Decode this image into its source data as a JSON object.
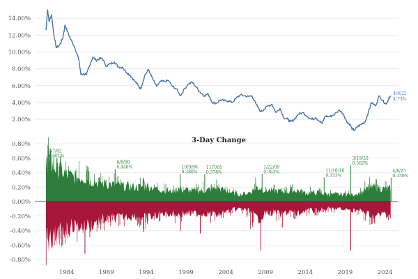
{
  "colors": {
    "line": "#4a74a8",
    "up": "#2e7d3a",
    "down": "#a8173a",
    "grid": "#dddddd",
    "annotation_top": "#2e7d3a",
    "last_label": "#4a74a8"
  },
  "chart_data": [
    {
      "type": "line",
      "title": "",
      "ylabel": "",
      "xlabel": "",
      "ylim": [
        0.6,
        15.5
      ],
      "xlim": [
        1980.5,
        2026.2
      ],
      "yticks": [
        "2.00%",
        "4.00%",
        "6.00%",
        "8.00%",
        "10.00%",
        "12.00%",
        "14.00%"
      ],
      "series": [
        {
          "x": [
            1981.9,
            1982.1,
            1982.3,
            1982.6,
            1982.9,
            1983.2,
            1983.6,
            1984.0,
            1984.3,
            1984.6,
            1985.0,
            1985.5,
            1986.0,
            1986.3,
            1986.6,
            1987.0,
            1987.3,
            1987.8,
            1988.2,
            1988.6,
            1989.0,
            1989.5,
            1990.0,
            1990.5,
            1991.0,
            1991.5,
            1992.0,
            1992.5,
            1993.0,
            1993.5,
            1993.8,
            1994.3,
            1994.8,
            1995.3,
            1995.8,
            1996.3,
            1996.8,
            1997.3,
            1997.8,
            1998.3,
            1998.8,
            1999.3,
            1999.8,
            2000.3,
            2000.8,
            2001.3,
            2001.8,
            2002.3,
            2002.8,
            2003.3,
            2003.8,
            2004.3,
            2004.8,
            2005.3,
            2005.8,
            2006.3,
            2006.8,
            2007.3,
            2007.8,
            2008.3,
            2008.9,
            2009.3,
            2009.8,
            2010.3,
            2010.8,
            2011.3,
            2011.8,
            2012.3,
            2012.6,
            2013.0,
            2013.6,
            2014.2,
            2014.8,
            2015.3,
            2015.8,
            2016.3,
            2016.6,
            2017.0,
            2017.5,
            2018.0,
            2018.8,
            2019.3,
            2019.7,
            2020.1,
            2020.4,
            2020.7,
            2021.0,
            2021.5,
            2022.0,
            2022.4,
            2022.8,
            2023.3,
            2023.8,
            2024.2,
            2024.7,
            2025.0,
            2025.27
          ],
          "y": [
            12.6,
            15.0,
            13.6,
            14.4,
            12.0,
            10.5,
            10.8,
            11.6,
            13.2,
            12.4,
            11.5,
            10.6,
            9.2,
            7.3,
            7.4,
            7.3,
            8.2,
            9.4,
            9.0,
            9.2,
            9.2,
            8.3,
            8.6,
            8.8,
            8.2,
            8.2,
            7.6,
            7.2,
            6.6,
            6.0,
            5.6,
            7.2,
            7.9,
            6.8,
            5.9,
            6.5,
            6.5,
            6.6,
            5.9,
            5.6,
            4.8,
            5.6,
            6.2,
            6.4,
            5.8,
            5.2,
            4.8,
            5.0,
            4.0,
            3.9,
            4.3,
            4.2,
            4.2,
            4.0,
            4.5,
            4.9,
            4.8,
            4.7,
            4.8,
            3.8,
            2.9,
            3.2,
            3.6,
            3.8,
            2.8,
            3.3,
            2.2,
            2.0,
            1.7,
            1.9,
            2.6,
            2.8,
            2.3,
            2.0,
            2.2,
            1.8,
            1.5,
            2.4,
            2.3,
            2.5,
            3.1,
            2.6,
            1.7,
            1.4,
            0.8,
            0.7,
            1.1,
            1.4,
            1.7,
            2.8,
            4.0,
            3.6,
            4.8,
            4.2,
            3.8,
            4.6,
            4.73
          ]
        }
      ],
      "last_label": {
        "date": "4/8/25",
        "value": "4.73%"
      }
    },
    {
      "type": "bar",
      "title": "3-Day Change",
      "ylabel": "",
      "xlabel": "",
      "ylim": [
        -0.8,
        0.8
      ],
      "xlim": [
        1980.5,
        2026.2
      ],
      "yticks": [
        "-0.80%",
        "-0.60%",
        "-0.40%",
        "-0.20%",
        "0.00%",
        "0.20%",
        "0.40%",
        "0.60%",
        "0.80%"
      ],
      "xticks": [
        "1984",
        "1989",
        "1994",
        "1999",
        "2004",
        "2009",
        "2014",
        "2019",
        "2024"
      ],
      "up_envelope": {
        "x": [
          1981.9,
          1982.3,
          1982.8,
          1983.5,
          1984.5,
          1985.5,
          1986.5,
          1987.5,
          1988.5,
          1989.5,
          1990.5,
          1991.5,
          1992.5,
          1993.5,
          1994.5,
          1995.5,
          1996.5,
          1997.5,
          1998.5,
          1999.5,
          2000.5,
          2001.5,
          2002.5,
          2003.5,
          2004.5,
          2005.5,
          2006.5,
          2007.5,
          2008.5,
          2009.5,
          2010.5,
          2011.5,
          2012.5,
          2013.5,
          2014.5,
          2015.5,
          2016.5,
          2017.5,
          2018.5,
          2019.5,
          2020.5,
          2021.5,
          2022.5,
          2023.5,
          2024.5,
          2025.2
        ],
        "y": [
          0.6,
          0.74,
          0.6,
          0.55,
          0.45,
          0.4,
          0.42,
          0.36,
          0.32,
          0.3,
          0.28,
          0.26,
          0.25,
          0.24,
          0.26,
          0.24,
          0.2,
          0.18,
          0.2,
          0.2,
          0.18,
          0.18,
          0.2,
          0.22,
          0.18,
          0.14,
          0.12,
          0.16,
          0.24,
          0.2,
          0.18,
          0.18,
          0.16,
          0.2,
          0.14,
          0.16,
          0.14,
          0.12,
          0.12,
          0.12,
          0.12,
          0.16,
          0.22,
          0.26,
          0.2,
          0.22
        ]
      },
      "down_envelope": {
        "x": [
          1981.9,
          1982.3,
          1982.8,
          1983.5,
          1984.5,
          1985.5,
          1986.5,
          1987.5,
          1988.5,
          1989.5,
          1990.5,
          1991.5,
          1992.5,
          1993.5,
          1994.5,
          1995.5,
          1996.5,
          1997.5,
          1998.5,
          1999.5,
          2000.5,
          2001.5,
          2002.5,
          2003.5,
          2004.5,
          2005.5,
          2006.5,
          2007.5,
          2008.5,
          2009.5,
          2010.5,
          2011.5,
          2012.5,
          2013.5,
          2014.5,
          2015.5,
          2016.5,
          2017.5,
          2018.5,
          2019.5,
          2020.5,
          2021.5,
          2022.5,
          2023.5,
          2024.5,
          2025.2
        ],
        "y": [
          -0.5,
          -0.7,
          -0.6,
          -0.5,
          -0.45,
          -0.4,
          -0.42,
          -0.38,
          -0.32,
          -0.3,
          -0.28,
          -0.26,
          -0.25,
          -0.24,
          -0.28,
          -0.24,
          -0.2,
          -0.2,
          -0.22,
          -0.2,
          -0.2,
          -0.2,
          -0.2,
          -0.22,
          -0.18,
          -0.14,
          -0.12,
          -0.16,
          -0.3,
          -0.2,
          -0.18,
          -0.22,
          -0.16,
          -0.22,
          -0.14,
          -0.16,
          -0.14,
          -0.12,
          -0.12,
          -0.14,
          -0.14,
          -0.16,
          -0.22,
          -0.24,
          -0.2,
          -0.2
        ]
      },
      "spikes": [
        {
          "x": 1986.8,
          "y": -0.72
        },
        {
          "x": 2001.3,
          "y": -0.44
        },
        {
          "x": 2008.9,
          "y": -0.68
        },
        {
          "x": 2020.2,
          "y": -0.68
        },
        {
          "x": 1994.2,
          "y": -0.42
        },
        {
          "x": 1998.8,
          "y": -0.4
        },
        {
          "x": 2011.6,
          "y": -0.36
        },
        {
          "x": 2023.2,
          "y": -0.3
        }
      ],
      "annotations": [
        {
          "date": "1/7/82",
          "value": "0.601%",
          "x": 1982.02,
          "y": 0.601
        },
        {
          "date": "8/8/90",
          "value": "0.448%",
          "x": 1990.6,
          "y": 0.448
        },
        {
          "date": "10/9/98",
          "value": "0.380%",
          "x": 1998.77,
          "y": 0.38
        },
        {
          "date": "11/7/01",
          "value": "0.378%",
          "x": 2001.85,
          "y": 0.378
        },
        {
          "date": "1/22/09",
          "value": "0.383%",
          "x": 2009.06,
          "y": 0.383
        },
        {
          "date": "11/10/16",
          "value": "0.333%",
          "x": 2016.86,
          "y": 0.333
        },
        {
          "date": "3/19/20",
          "value": "0.502%",
          "x": 2020.21,
          "y": 0.502
        },
        {
          "date": "4/8/25",
          "value": "0.330%",
          "x": 2025.27,
          "y": 0.33
        }
      ]
    }
  ]
}
